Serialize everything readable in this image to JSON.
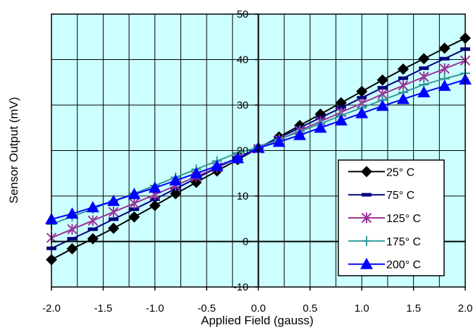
{
  "chart_data": {
    "type": "line",
    "title": "",
    "xlabel": "Applied Field (gauss)",
    "ylabel": "Sensor Output (mV)",
    "xlim": [
      -2.0,
      2.0
    ],
    "ylim": [
      -10,
      50
    ],
    "x_ticks": [
      -2.0,
      -1.5,
      -1.0,
      -0.5,
      0.0,
      0.5,
      1.0,
      1.5,
      2.0
    ],
    "x_tick_labels": [
      "-2.0",
      "-1.5",
      "-1.0",
      "-0.5",
      "0.0",
      "0.5",
      "1.0",
      "1.5",
      "2.0"
    ],
    "y_ticks": [
      -10,
      0,
      10,
      20,
      30,
      40,
      50
    ],
    "y_tick_labels": [
      "-10",
      "0",
      "10",
      "20",
      "30",
      "40",
      "50"
    ],
    "x_minor_grid": [
      -1.75,
      -1.25,
      -0.75,
      -0.25,
      0.25,
      0.75,
      1.25,
      1.75
    ],
    "grid": true,
    "plot_background": "#ccffff",
    "legend_position": "lower-right",
    "x": [
      -2.0,
      -1.8,
      -1.6,
      -1.4,
      -1.2,
      -1.0,
      -0.8,
      -0.6,
      -0.4,
      -0.2,
      0.0,
      0.2,
      0.4,
      0.6,
      0.8,
      1.0,
      1.2,
      1.4,
      1.6,
      1.8,
      2.0
    ],
    "series": [
      {
        "name": "25° C",
        "color": "#000000",
        "marker": "diamond",
        "values": [
          -4.0,
          -1.6,
          0.6,
          2.9,
          5.4,
          7.9,
          10.5,
          13.0,
          15.5,
          18.0,
          20.5,
          23.0,
          25.5,
          28.0,
          30.5,
          33.0,
          35.5,
          37.9,
          40.2,
          42.5,
          44.7
        ]
      },
      {
        "name": "75° C",
        "color": "#000080",
        "marker": "dash",
        "values": [
          -1.5,
          0.6,
          2.7,
          4.9,
          7.1,
          9.3,
          11.6,
          13.9,
          16.2,
          18.4,
          20.6,
          22.8,
          25.0,
          27.2,
          29.4,
          31.6,
          33.8,
          35.9,
          38.1,
          40.2,
          42.3
        ]
      },
      {
        "name": "125° C",
        "color": "#993399",
        "marker": "asterisk",
        "values": [
          0.8,
          2.7,
          4.6,
          6.5,
          8.4,
          10.3,
          12.3,
          14.3,
          16.3,
          18.4,
          20.4,
          22.4,
          24.4,
          26.4,
          28.4,
          30.4,
          32.4,
          34.3,
          36.2,
          38.0,
          39.8
        ]
      },
      {
        "name": "175° C",
        "color": "#339999",
        "marker": "plus",
        "values": [
          3.8,
          5.5,
          7.2,
          8.9,
          10.6,
          12.3,
          14.1,
          15.9,
          17.7,
          19.5,
          20.7,
          22.4,
          24.2,
          25.9,
          27.7,
          29.4,
          31.1,
          32.8,
          34.5,
          35.8,
          37.0
        ]
      },
      {
        "name": "200° C",
        "color": "#0000ff",
        "marker": "triangle",
        "values": [
          4.9,
          6.1,
          7.5,
          8.9,
          10.4,
          11.8,
          13.4,
          15.0,
          16.6,
          18.3,
          20.6,
          21.9,
          23.4,
          25.0,
          26.6,
          28.2,
          29.8,
          31.3,
          32.8,
          34.2,
          35.6
        ]
      }
    ]
  }
}
